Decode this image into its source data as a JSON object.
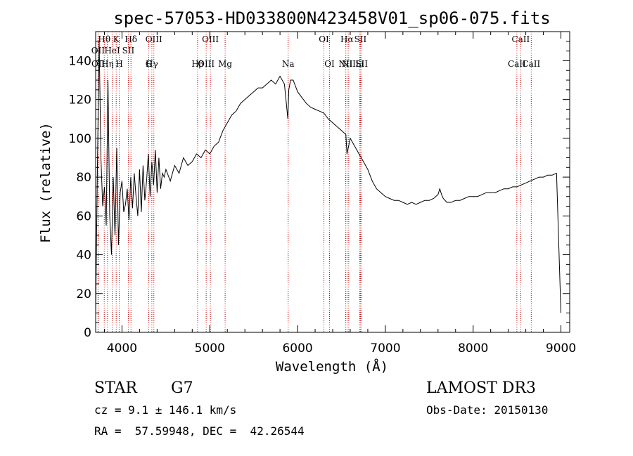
{
  "chart_data": {
    "type": "line",
    "title": "spec-57053-HD033800N423458V01_sp06-075.fits",
    "xlabel": "Wavelength (Å)",
    "ylabel": "Flux (relative)",
    "xlim": [
      3700,
      9100
    ],
    "ylim": [
      0,
      155
    ],
    "xticks": [
      4000,
      5000,
      6000,
      7000,
      8000,
      9000
    ],
    "yticks": [
      0,
      20,
      40,
      60,
      80,
      100,
      120,
      140
    ],
    "series": [
      {
        "name": "flux",
        "x": [
          3700,
          3720,
          3740,
          3760,
          3780,
          3800,
          3820,
          3840,
          3860,
          3880,
          3900,
          3920,
          3940,
          3960,
          3980,
          4000,
          4020,
          4040,
          4060,
          4080,
          4100,
          4120,
          4140,
          4160,
          4180,
          4200,
          4220,
          4240,
          4260,
          4280,
          4300,
          4320,
          4340,
          4360,
          4380,
          4400,
          4420,
          4440,
          4460,
          4480,
          4500,
          4550,
          4600,
          4650,
          4700,
          4750,
          4800,
          4850,
          4900,
          4950,
          5000,
          5050,
          5100,
          5150,
          5200,
          5250,
          5300,
          5350,
          5400,
          5450,
          5500,
          5550,
          5600,
          5650,
          5700,
          5750,
          5800,
          5850,
          5890,
          5900,
          5920,
          5950,
          6000,
          6050,
          6100,
          6150,
          6200,
          6250,
          6300,
          6350,
          6400,
          6450,
          6500,
          6550,
          6563,
          6600,
          6650,
          6700,
          6750,
          6800,
          6850,
          6900,
          6950,
          7000,
          7050,
          7100,
          7150,
          7200,
          7250,
          7300,
          7350,
          7400,
          7450,
          7500,
          7550,
          7600,
          7620,
          7640,
          7660,
          7700,
          7750,
          7800,
          7850,
          7900,
          7950,
          8000,
          8050,
          8100,
          8150,
          8200,
          8250,
          8300,
          8350,
          8400,
          8450,
          8500,
          8550,
          8600,
          8650,
          8700,
          8750,
          8800,
          8850,
          8900,
          8950,
          9000
        ],
        "y": [
          10,
          85,
          150,
          90,
          65,
          75,
          55,
          130,
          60,
          40,
          80,
          50,
          95,
          45,
          72,
          78,
          62,
          66,
          74,
          58,
          80,
          64,
          82,
          70,
          60,
          84,
          62,
          86,
          68,
          78,
          92,
          70,
          88,
          76,
          94,
          72,
          90,
          74,
          82,
          80,
          84,
          78,
          86,
          82,
          90,
          86,
          88,
          92,
          90,
          94,
          92,
          96,
          98,
          104,
          108,
          112,
          114,
          118,
          120,
          122,
          124,
          126,
          126,
          128,
          130,
          128,
          132,
          128,
          110,
          125,
          130,
          130,
          124,
          121,
          118,
          116,
          115,
          114,
          113,
          110,
          108,
          106,
          104,
          102,
          92,
          100,
          96,
          92,
          88,
          84,
          78,
          74,
          72,
          70,
          69,
          68,
          68,
          67,
          66,
          67,
          66,
          67,
          68,
          68,
          69,
          71,
          74,
          71,
          69,
          67,
          67,
          68,
          68,
          69,
          70,
          70,
          70,
          71,
          72,
          72,
          72,
          73,
          74,
          74,
          75,
          75,
          76,
          77,
          78,
          79,
          80,
          80,
          81,
          81,
          82,
          10
        ]
      }
    ],
    "line_markers": [
      {
        "label": "OII",
        "x": 3727,
        "row": 2
      },
      {
        "label": "OII",
        "x": 3729,
        "row": 3
      },
      {
        "label": "Hθ",
        "x": 3798,
        "row": 1
      },
      {
        "label": "Hη",
        "x": 3835,
        "row": 3
      },
      {
        "label": "HeI",
        "x": 3889,
        "row": 2
      },
      {
        "label": "K",
        "x": 3934,
        "row": 1
      },
      {
        "label": "H",
        "x": 3969,
        "row": 3
      },
      {
        "label": "SII",
        "x": 4072,
        "row": 2
      },
      {
        "label": "Hδ",
        "x": 4102,
        "row": 1
      },
      {
        "label": "G",
        "x": 4305,
        "row": 4
      },
      {
        "label": "Hγ",
        "x": 4340,
        "row": 3
      },
      {
        "label": "OIII",
        "x": 4363,
        "row": 1
      },
      {
        "label": "Hβ",
        "x": 4861,
        "row": 4
      },
      {
        "label": "OIII",
        "x": 4959,
        "row": 3
      },
      {
        "label": "OIII",
        "x": 5007,
        "row": 1
      },
      {
        "label": "Mg",
        "x": 5175,
        "row": 4
      },
      {
        "label": "Na",
        "x": 5893,
        "row": 3
      },
      {
        "label": "OI",
        "x": 6300,
        "row": 1
      },
      {
        "label": "OI",
        "x": 6364,
        "row": 4
      },
      {
        "label": "NII",
        "x": 6548,
        "row": 3
      },
      {
        "label": "Hα",
        "x": 6563,
        "row": 1
      },
      {
        "label": "NII",
        "x": 6583,
        "row": 4
      },
      {
        "label": "Li",
        "x": 6708,
        "row": 3
      },
      {
        "label": "SII",
        "x": 6716,
        "row": 1
      },
      {
        "label": "SII",
        "x": 6731,
        "row": 4
      },
      {
        "label": "CaII",
        "x": 8498,
        "row": 3
      },
      {
        "label": "CaII",
        "x": 8542,
        "row": 1
      },
      {
        "label": "CaII",
        "x": 8662,
        "row": 4
      }
    ],
    "marker_color": "#cc0000"
  },
  "info": {
    "class": "STAR",
    "subclass": "G7",
    "survey": "LAMOST DR3",
    "redshift": "cz = 9.1 ± 146.1 km/s",
    "obs_date": "Obs-Date: 20150130",
    "coords": "RA =  57.59948, DEC =  42.26544"
  }
}
